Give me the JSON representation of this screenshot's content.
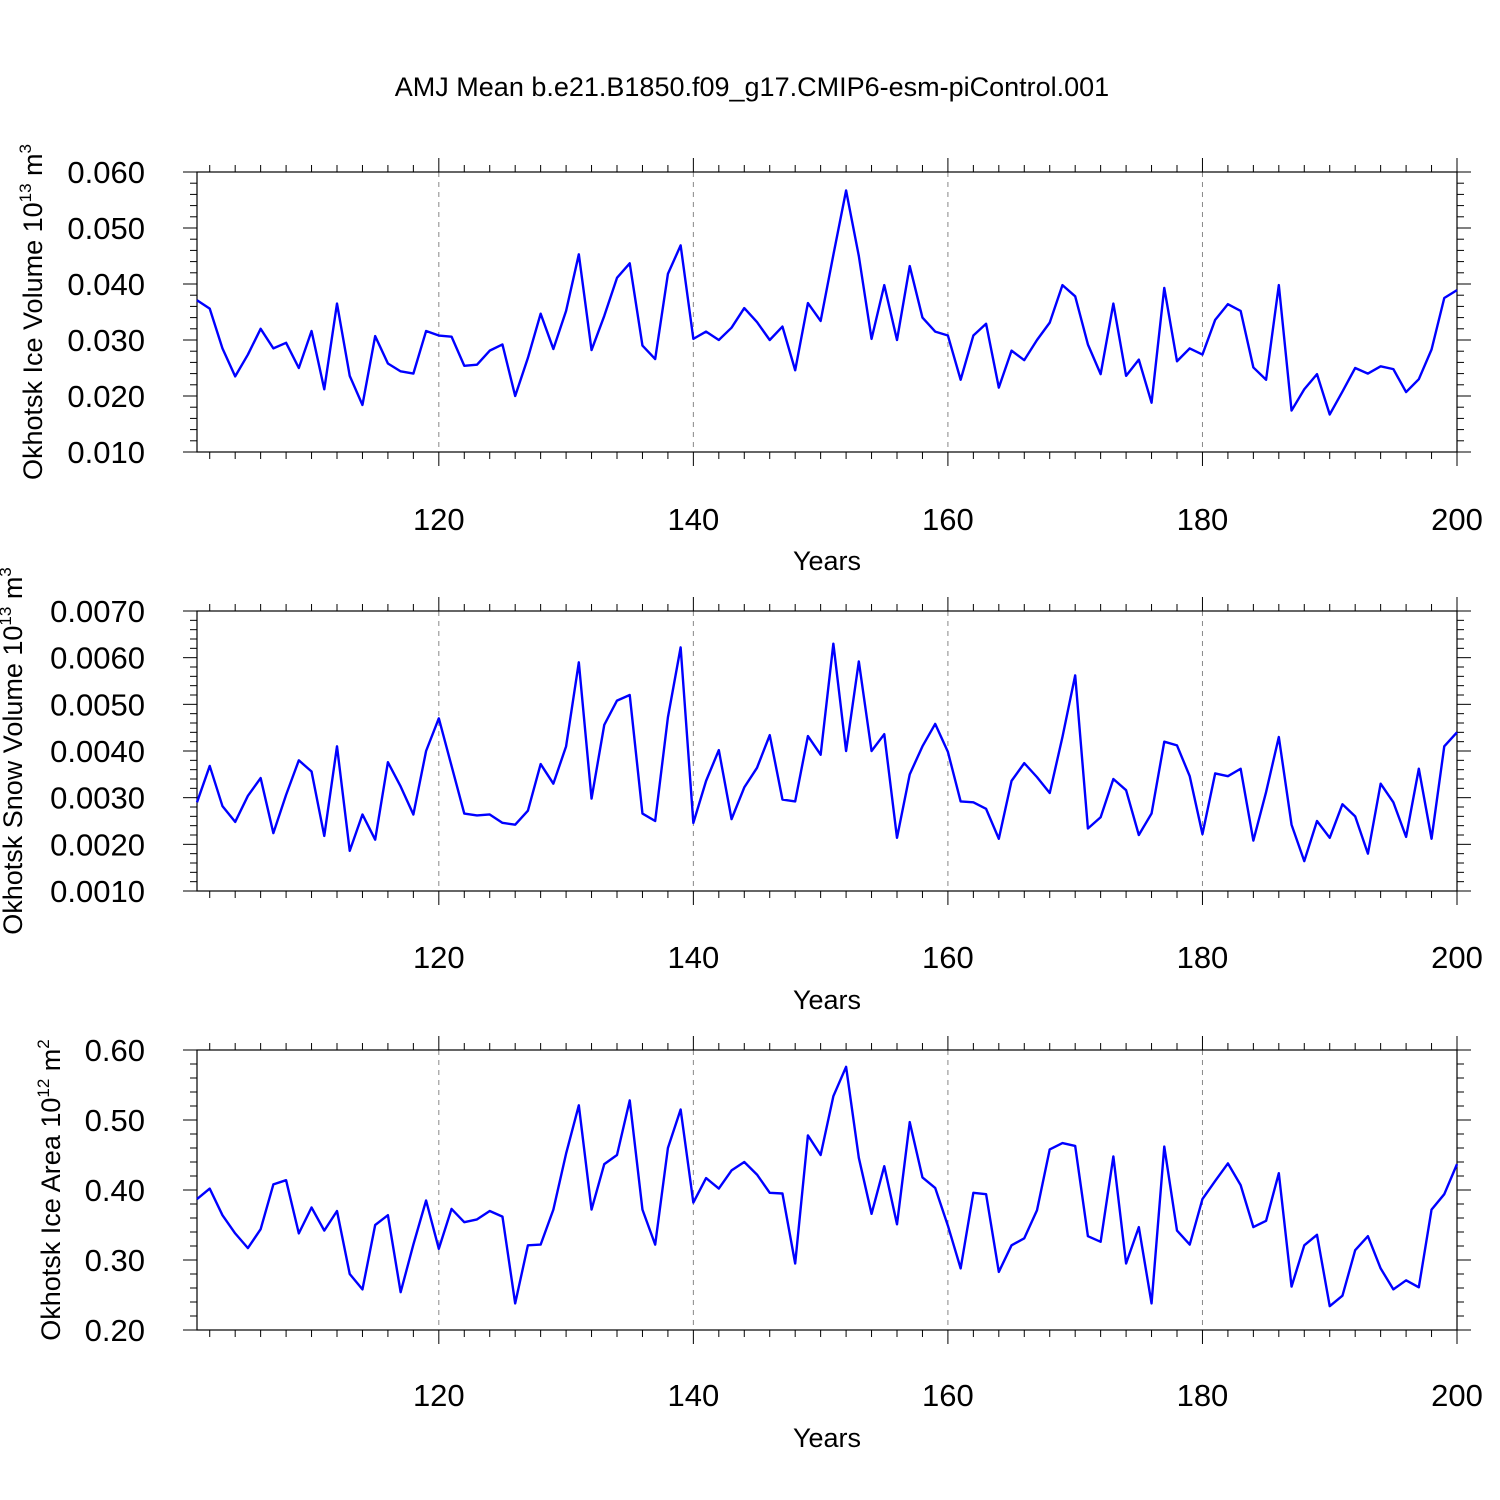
{
  "figure": {
    "title": "AMJ Mean b.e21.B1850.f09_g17.CMIP6-esm-piControl.001"
  },
  "colors": {
    "series": "#0000ff",
    "grid": "#888888"
  },
  "chart_data": [
    {
      "type": "line",
      "ylabel": {
        "main": "Okhotsk Ice Volume 10",
        "sup": "13",
        "unit": " m",
        "unit_sup": "3"
      },
      "xlabel": "Years",
      "xlim": [
        101,
        200
      ],
      "ylim": [
        0.01,
        0.06
      ],
      "yticks": [
        0.01,
        0.02,
        0.03,
        0.04,
        0.05,
        0.06
      ],
      "ytick_labels": [
        "0.010",
        "0.020",
        "0.030",
        "0.040",
        "0.050",
        "0.060"
      ],
      "xticks": [
        120,
        140,
        160,
        180,
        200
      ],
      "xtick_labels": [
        "120",
        "140",
        "160",
        "180",
        "200"
      ],
      "grid": "vertical dashed at major x ticks",
      "series": [
        {
          "x_start": 101,
          "values": [
            0.0371,
            0.0356,
            0.0285,
            0.0235,
            0.0274,
            0.032,
            0.0285,
            0.0295,
            0.025,
            0.0316,
            0.0212,
            0.0365,
            0.0236,
            0.0184,
            0.0307,
            0.0258,
            0.0244,
            0.024,
            0.0316,
            0.0308,
            0.0306,
            0.0254,
            0.0256,
            0.0281,
            0.0292,
            0.02,
            0.0268,
            0.0347,
            0.0284,
            0.0352,
            0.0453,
            0.0282,
            0.0343,
            0.0411,
            0.0437,
            0.029,
            0.0266,
            0.0418,
            0.0469,
            0.0302,
            0.0315,
            0.03,
            0.0322,
            0.0357,
            0.0332,
            0.03,
            0.0324,
            0.0246,
            0.0366,
            0.0334,
            0.0452,
            0.0567,
            0.045,
            0.0302,
            0.0398,
            0.03,
            0.0432,
            0.034,
            0.0315,
            0.0308,
            0.0229,
            0.0308,
            0.0329,
            0.0215,
            0.0281,
            0.0264,
            0.03,
            0.0331,
            0.0398,
            0.0378,
            0.0292,
            0.0239,
            0.0365,
            0.0236,
            0.0265,
            0.0188,
            0.0393,
            0.0262,
            0.0285,
            0.0274,
            0.0336,
            0.0364,
            0.0352,
            0.0251,
            0.0229,
            0.0398,
            0.0174,
            0.0212,
            0.0239,
            0.0167,
            0.0208,
            0.025,
            0.024,
            0.0253,
            0.0248,
            0.0207,
            0.023,
            0.0283,
            0.0375,
            0.0389
          ]
        }
      ]
    },
    {
      "type": "line",
      "ylabel": {
        "main": "Okhotsk Snow Volume 10",
        "sup": "13",
        "unit": " m",
        "unit_sup": "3"
      },
      "xlabel": "Years",
      "xlim": [
        101,
        200
      ],
      "ylim": [
        0.001,
        0.007
      ],
      "yticks": [
        0.001,
        0.002,
        0.003,
        0.004,
        0.005,
        0.006,
        0.007
      ],
      "ytick_labels": [
        "0.0010",
        "0.0020",
        "0.0030",
        "0.0040",
        "0.0050",
        "0.0060",
        "0.0070"
      ],
      "xticks": [
        120,
        140,
        160,
        180,
        200
      ],
      "xtick_labels": [
        "120",
        "140",
        "160",
        "180",
        "200"
      ],
      "grid": "vertical dashed at major x ticks",
      "series": [
        {
          "x_start": 101,
          "values": [
            0.0029,
            0.00368,
            0.00282,
            0.00248,
            0.00304,
            0.00342,
            0.00224,
            0.00306,
            0.0038,
            0.00356,
            0.00218,
            0.0041,
            0.00186,
            0.00264,
            0.0021,
            0.00376,
            0.00324,
            0.00264,
            0.004,
            0.0047,
            0.00368,
            0.00266,
            0.00262,
            0.00264,
            0.00246,
            0.00242,
            0.00272,
            0.00372,
            0.0033,
            0.0041,
            0.0059,
            0.00298,
            0.00456,
            0.00508,
            0.0052,
            0.00266,
            0.0025,
            0.00472,
            0.00622,
            0.00246,
            0.00336,
            0.00402,
            0.00254,
            0.00322,
            0.00364,
            0.00434,
            0.00296,
            0.00292,
            0.00432,
            0.00392,
            0.0063,
            0.004,
            0.00592,
            0.004,
            0.00436,
            0.00214,
            0.0035,
            0.0041,
            0.00458,
            0.00398,
            0.00292,
            0.0029,
            0.00276,
            0.00212,
            0.00336,
            0.00374,
            0.00344,
            0.0031,
            0.0043,
            0.00562,
            0.00234,
            0.00258,
            0.0034,
            0.00316,
            0.0022,
            0.00266,
            0.0042,
            0.00412,
            0.00346,
            0.00222,
            0.00352,
            0.00346,
            0.00362,
            0.00208,
            0.00312,
            0.0043,
            0.00242,
            0.00164,
            0.0025,
            0.00214,
            0.00286,
            0.0026,
            0.0018,
            0.0033,
            0.0029,
            0.00216,
            0.00362,
            0.00212,
            0.0041,
            0.0044
          ]
        }
      ]
    },
    {
      "type": "line",
      "ylabel": {
        "main": "Okhotsk Ice Area 10",
        "sup": "12",
        "unit": " m",
        "unit_sup": "2"
      },
      "xlabel": "Years",
      "xlim": [
        101,
        200
      ],
      "ylim": [
        0.2,
        0.6
      ],
      "yticks": [
        0.2,
        0.3,
        0.4,
        0.5,
        0.6
      ],
      "ytick_labels": [
        "0.20",
        "0.30",
        "0.40",
        "0.50",
        "0.60"
      ],
      "xticks": [
        120,
        140,
        160,
        180,
        200
      ],
      "xtick_labels": [
        "120",
        "140",
        "160",
        "180",
        "200"
      ],
      "grid": "vertical dashed at major x ticks",
      "series": [
        {
          "x_start": 101,
          "values": [
            0.387,
            0.402,
            0.364,
            0.338,
            0.317,
            0.344,
            0.408,
            0.414,
            0.338,
            0.375,
            0.342,
            0.37,
            0.28,
            0.258,
            0.35,
            0.364,
            0.254,
            0.322,
            0.385,
            0.316,
            0.373,
            0.354,
            0.358,
            0.37,
            0.362,
            0.238,
            0.321,
            0.322,
            0.372,
            0.452,
            0.521,
            0.372,
            0.437,
            0.45,
            0.528,
            0.372,
            0.322,
            0.46,
            0.515,
            0.382,
            0.417,
            0.402,
            0.428,
            0.44,
            0.422,
            0.396,
            0.395,
            0.295,
            0.478,
            0.45,
            0.534,
            0.576,
            0.446,
            0.366,
            0.434,
            0.351,
            0.497,
            0.418,
            0.403,
            0.349,
            0.288,
            0.396,
            0.394,
            0.283,
            0.321,
            0.331,
            0.371,
            0.458,
            0.467,
            0.463,
            0.334,
            0.326,
            0.448,
            0.295,
            0.347,
            0.238,
            0.462,
            0.342,
            0.322,
            0.387,
            0.413,
            0.438,
            0.407,
            0.347,
            0.356,
            0.424,
            0.262,
            0.321,
            0.336,
            0.234,
            0.249,
            0.314,
            0.334,
            0.288,
            0.258,
            0.271,
            0.261,
            0.372,
            0.394,
            0.437
          ]
        }
      ]
    }
  ]
}
